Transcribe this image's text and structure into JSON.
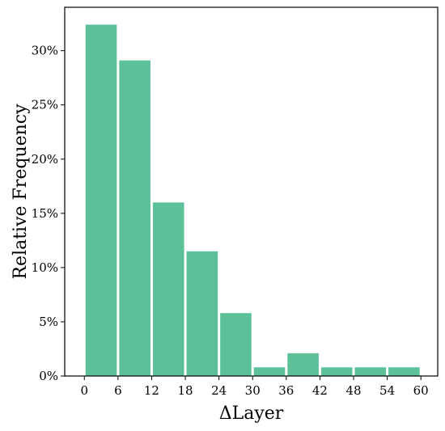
{
  "chart_data": {
    "type": "bar",
    "bin_edges": [
      0,
      6,
      12,
      18,
      24,
      30,
      36,
      42,
      48,
      54,
      60
    ],
    "values": [
      32.4,
      29.1,
      16.0,
      11.5,
      5.8,
      0.8,
      2.1,
      0.8,
      0.8,
      0.8
    ],
    "bar_color": "#5CC198",
    "xlabel": "ΔLayer",
    "ylabel": "Relative Frequency",
    "xticks": [
      0,
      6,
      12,
      18,
      24,
      30,
      36,
      42,
      48,
      54,
      60
    ],
    "xtick_labels": [
      "0",
      "6",
      "12",
      "18",
      "24",
      "30",
      "36",
      "42",
      "48",
      "54",
      "60"
    ],
    "yticks": [
      0,
      5,
      10,
      15,
      20,
      25,
      30
    ],
    "ytick_labels": [
      "0%",
      "5%",
      "10%",
      "15%",
      "20%",
      "25%",
      "30%"
    ],
    "xlim": [
      -3.5,
      63
    ],
    "ylim": [
      0,
      34
    ],
    "grid": false,
    "legend": "none"
  }
}
